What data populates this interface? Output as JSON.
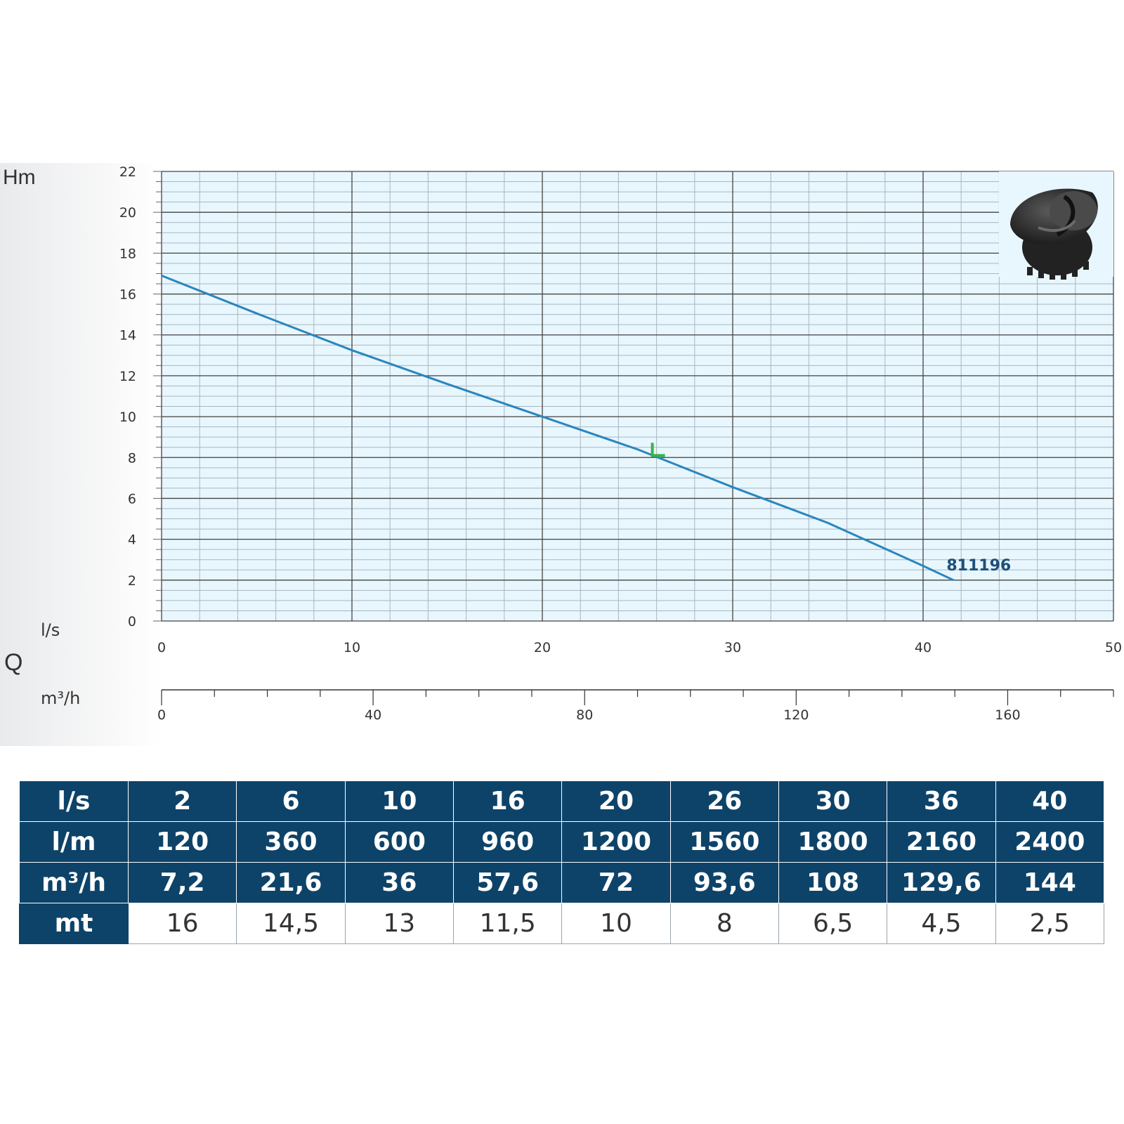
{
  "colors": {
    "plot_bg": "#e8f6fd",
    "grid_major": "#444444",
    "grid_minor": "#a9b6c2",
    "curve": "#2a86bf",
    "curve_label": "#1f4f7a",
    "marker": "#35b44a",
    "table_header_bg": "#0e4369",
    "table_header_text": "#ffffff"
  },
  "chart_data": {
    "type": "line",
    "ylabel": "Hm",
    "xlabel": "Q",
    "x_unit_primary": "l/s",
    "x_unit_secondary": "m³/h",
    "xlim": [
      0,
      50
    ],
    "ylim": [
      0,
      22
    ],
    "x_ticks": [
      "0",
      "10",
      "20",
      "30",
      "40",
      "50"
    ],
    "y_ticks": [
      "0",
      "2",
      "4",
      "6",
      "8",
      "10",
      "12",
      "14",
      "16",
      "18",
      "20",
      "22"
    ],
    "secondary_axis_max": 180,
    "secondary_ticks": [
      "0",
      "40",
      "80",
      "120",
      "160"
    ],
    "grid": true,
    "series": [
      {
        "name": "811196",
        "x": [
          0,
          5,
          10,
          15,
          20,
          25,
          30,
          35,
          40,
          41.6
        ],
        "y": [
          16.9,
          15.05,
          13.25,
          11.6,
          10.0,
          8.4,
          6.55,
          4.8,
          2.7,
          2.0
        ]
      }
    ],
    "marker_point": {
      "x": 26,
      "y": 8.1
    }
  },
  "table": {
    "rows": [
      {
        "head": "l/s",
        "values": [
          "2",
          "6",
          "10",
          "16",
          "20",
          "26",
          "30",
          "36",
          "40"
        ],
        "kind": "header"
      },
      {
        "head": "l/m",
        "values": [
          "120",
          "360",
          "600",
          "960",
          "1200",
          "1560",
          "1800",
          "2160",
          "2400"
        ],
        "kind": "header"
      },
      {
        "head": "m³/h",
        "values": [
          "7,2",
          "21,6",
          "36",
          "57,6",
          "72",
          "93,6",
          "108",
          "129,6",
          "144"
        ],
        "kind": "header"
      },
      {
        "head": "mt",
        "values": [
          "16",
          "14,5",
          "13",
          "11,5",
          "10",
          "8",
          "6,5",
          "4,5",
          "2,5"
        ],
        "kind": "value"
      }
    ]
  }
}
